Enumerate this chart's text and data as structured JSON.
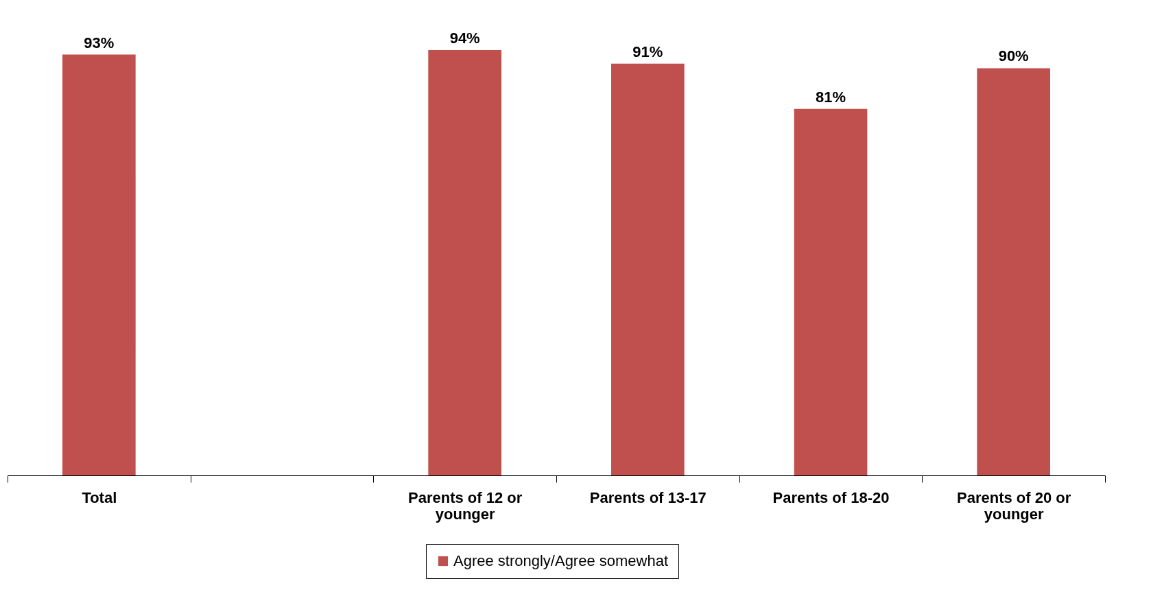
{
  "chart_data": {
    "type": "bar",
    "categories": [
      "Total",
      null,
      "Parents of 12 or younger",
      "Parents of 13-17",
      "Parents of 18-20",
      "Parents of 20 or younger"
    ],
    "series": [
      {
        "name": "Agree strongly/Agree somewhat",
        "color": "#c0504d",
        "values": [
          93,
          null,
          94,
          91,
          81,
          90
        ],
        "value_labels": [
          "93%",
          null,
          "94%",
          "91%",
          "81%",
          "90%"
        ]
      }
    ],
    "legend": "bottom",
    "grid": false,
    "tick_labels": "x"
  }
}
